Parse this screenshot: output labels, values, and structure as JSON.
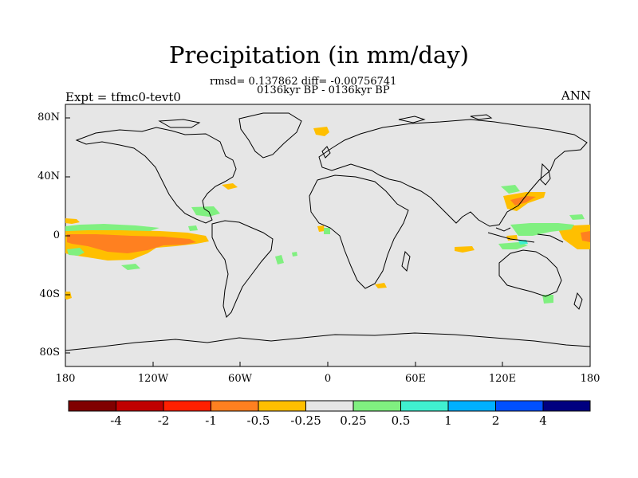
{
  "title": "Precipitation (in mm/day)",
  "stats_line": "rmsd= 0.137862 diff= -0.00756741",
  "subtitle": "0136kyr BP - 0136kyr BP",
  "left_label": "Expt = tfmc0-tevt0",
  "right_label": "ANN",
  "lat_ticks": [
    "80N",
    "40N",
    "0",
    "40S",
    "80S"
  ],
  "lon_ticks": [
    "180",
    "120W",
    "60W",
    "0",
    "60E",
    "120E",
    "180"
  ],
  "colorbar": {
    "colors": [
      "#800000",
      "#c00000",
      "#ff2000",
      "#ff8020",
      "#ffbf00",
      "#e6e6e6",
      "#80f080",
      "#40f0d0",
      "#00b0ff",
      "#0050ff",
      "#000080"
    ],
    "labels": [
      "-4",
      "-2",
      "-1",
      "-0.5",
      "-0.25",
      "0.25",
      "0.5",
      "1",
      "2",
      "4"
    ]
  },
  "colors": {
    "land_background": "#e6e6e6",
    "negative_light": "#ffbf00",
    "negative_medium": "#ff8020",
    "positive_light": "#80f080",
    "positive_medium": "#40f0d0"
  }
}
